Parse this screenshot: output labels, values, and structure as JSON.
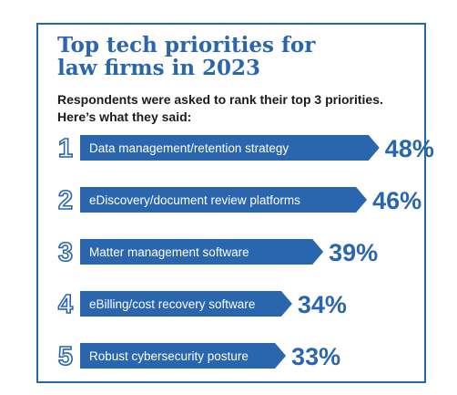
{
  "title_lines": [
    "Top tech priorities for",
    "law firms in 2023"
  ],
  "subtitle_lines": [
    "Respondents were asked to rank their top 3 priorities.",
    "Here’s what they said:"
  ],
  "colors": {
    "accent": "#2a66ad",
    "bar": "#2a66ad",
    "bar_text": "#ffffff",
    "text": "#1b1b1b"
  },
  "chart_data": {
    "type": "bar",
    "categories": [
      "Data management/retention strategy",
      "eDiscovery/document review platforms",
      "Matter management software",
      "eBilling/cost recovery software",
      "Robust cybersecurity posture"
    ],
    "ranks": [
      "1",
      "2",
      "3",
      "4",
      "5"
    ],
    "values": [
      48,
      46,
      39,
      34,
      33
    ],
    "value_labels": [
      "48%",
      "46%",
      "39%",
      "34%",
      "33%"
    ]
  }
}
